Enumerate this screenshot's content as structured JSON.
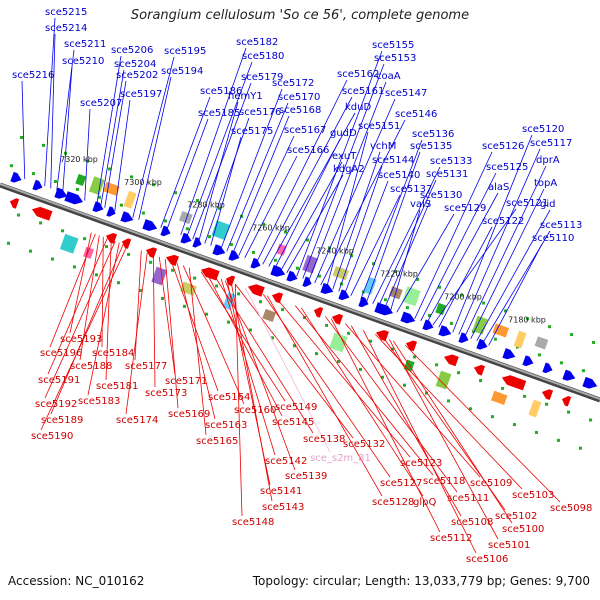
{
  "title": "Sorangium cellulosum 'So ce 56', complete genome",
  "accession": "Accession: NC_010162",
  "stats": "Topology: circular; Length: 13,033,779 bp; Genes: 9,700",
  "colors": {
    "forward": "#0000ee",
    "reverse": "#ee0000",
    "rna": "#ffaadd",
    "backbone": "#888888",
    "tick": "#22aa22"
  },
  "kbp_labels": [
    "7320 kbp",
    "7300 kbp",
    "7280 kbp",
    "7260 kbp",
    "7240 kbp",
    "7220 kbp",
    "7200 kbp",
    "7180 kbp"
  ],
  "top_labels": [
    "sce5215",
    "sce5214",
    "sce5211",
    "sce5210",
    "sce5216",
    "sce5207",
    "sce5206",
    "sce5204",
    "sce5202",
    "sce5197",
    "sce5195",
    "sce5194",
    "sce5186",
    "sce5185",
    "sce5182",
    "sce5180",
    "sce5179",
    "hemY1",
    "sce5176",
    "sce5175",
    "sce5172",
    "sce5170",
    "sce5168",
    "sce5167",
    "sce5166",
    "sce5162",
    "sce5161",
    "kduD",
    "gudD",
    "exuT",
    "kdgA2",
    "sce5155",
    "sce5153",
    "coaA",
    "sce5147",
    "sce5146",
    "sce5151",
    "vchM",
    "sce5144",
    "sce5140",
    "sce5137",
    "sce5136",
    "sce5135",
    "sce5133",
    "sce5131",
    "sce5130",
    "valS",
    "sce5129",
    "sce5126",
    "sce5125",
    "alaS",
    "sce5121",
    "sce5122",
    "sce5120",
    "sce5117",
    "dprA",
    "topA",
    "gid",
    "sce5113",
    "sce5110"
  ],
  "bottom_labels": [
    "sce5193",
    "sce5196",
    "sce5188",
    "sce5184",
    "sce5191",
    "sce5181",
    "sce5192",
    "sce5183",
    "sce5189",
    "sce5190",
    "sce5177",
    "sce5174",
    "sce5173",
    "sce5171",
    "sce5169",
    "sce5164",
    "sce5163",
    "sce5160",
    "sce5165",
    "sce5149",
    "sce5145",
    "sce5138",
    "sce5132",
    "sce5142",
    "sce5139",
    "sce5141",
    "sce5143",
    "sce5148",
    "sce5127",
    "sce5128",
    "sce5123",
    "sce5118",
    "glpQ",
    "sce5111",
    "sce5112",
    "sce5109",
    "sce5108",
    "sce5106",
    "sce5103",
    "sce5102",
    "sce5101",
    "sce5100",
    "sce5098"
  ],
  "pink_labels": [
    "sce_s2m_81"
  ]
}
